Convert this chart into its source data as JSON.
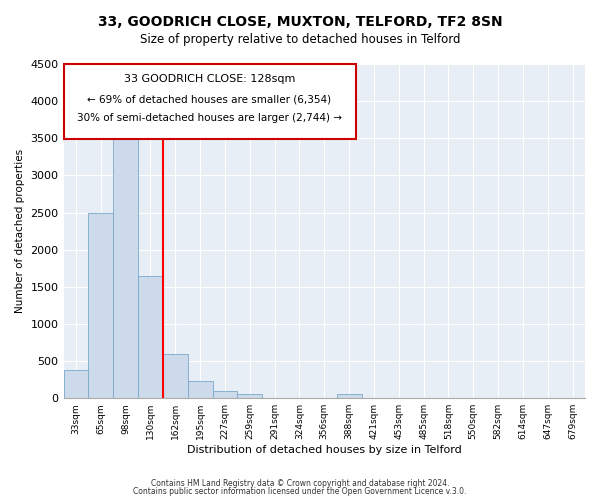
{
  "title": "33, GOODRICH CLOSE, MUXTON, TELFORD, TF2 8SN",
  "subtitle": "Size of property relative to detached houses in Telford",
  "xlabel": "Distribution of detached houses by size in Telford",
  "ylabel": "Number of detached properties",
  "bar_color": "#ccdaeb",
  "bar_edge_color": "#7aa8cc",
  "tick_labels": [
    "33sqm",
    "65sqm",
    "98sqm",
    "130sqm",
    "162sqm",
    "195sqm",
    "227sqm",
    "259sqm",
    "291sqm",
    "324sqm",
    "356sqm",
    "388sqm",
    "421sqm",
    "453sqm",
    "485sqm",
    "518sqm",
    "550sqm",
    "582sqm",
    "614sqm",
    "647sqm",
    "679sqm"
  ],
  "bar_values": [
    380,
    2500,
    3750,
    1640,
    590,
    235,
    95,
    55,
    0,
    0,
    0,
    55,
    0,
    0,
    0,
    0,
    0,
    0,
    0,
    0,
    0
  ],
  "ylim": [
    0,
    4500
  ],
  "yticks": [
    0,
    500,
    1000,
    1500,
    2000,
    2500,
    3000,
    3500,
    4000,
    4500
  ],
  "red_line_bar_index": 3,
  "marker_label": "33 GOODRICH CLOSE: 128sqm",
  "annotation_line1": "← 69% of detached houses are smaller (6,354)",
  "annotation_line2": "30% of semi-detached houses are larger (2,744) →",
  "footer1": "Contains HM Land Registry data © Crown copyright and database right 2024.",
  "footer2": "Contains public sector information licensed under the Open Government Licence v.3.0.",
  "bg_color": "#e8eef5"
}
